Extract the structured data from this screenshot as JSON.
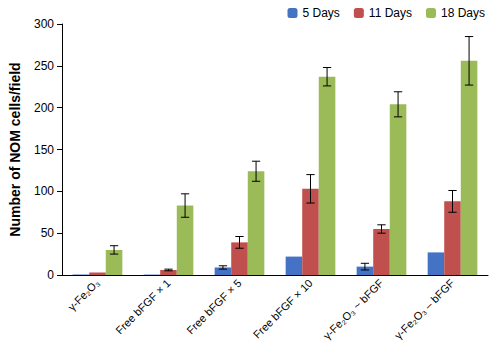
{
  "chart_data": {
    "type": "bar",
    "y_label": "Number of NOM cells/field",
    "categories": [
      "γ-Fe₂O₃",
      "Free bFGF × 1",
      "Free bFGF × 5",
      "Free bFGF × 10",
      "γ-Fe₂O₃ ~ bFGF",
      "γ-Fe₂O₃ – bFGF"
    ],
    "series": [
      {
        "name": "5 Days",
        "color": "#4472c4",
        "values": [
          0.5,
          0.5,
          9,
          22,
          10,
          27
        ],
        "errors": [
          0,
          0,
          2,
          0,
          4,
          0
        ]
      },
      {
        "name": "11 Days",
        "color": "#c0504d",
        "values": [
          3,
          6,
          39,
          103,
          55,
          88
        ],
        "errors": [
          0,
          1,
          7,
          17,
          5,
          13
        ]
      },
      {
        "name": "18 Days",
        "color": "#9bbb59",
        "values": [
          30,
          83,
          124,
          237,
          204,
          256
        ],
        "errors": [
          5,
          14,
          12,
          11,
          15,
          29
        ]
      }
    ],
    "ylim": [
      0,
      300
    ],
    "yticks": [
      0,
      50,
      100,
      150,
      200,
      250,
      300
    ],
    "grid": false,
    "legend": "top-right"
  }
}
